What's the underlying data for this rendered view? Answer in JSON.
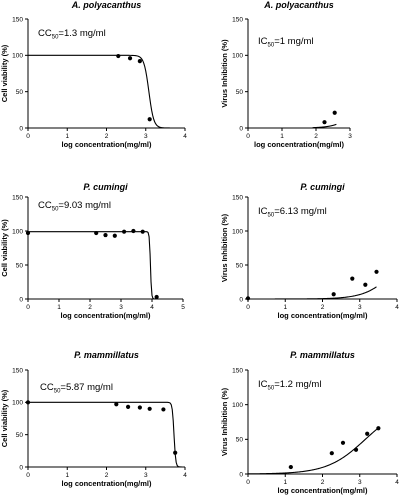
{
  "chart_data": [
    {
      "type": "scatter",
      "title": "A. polyacanthus",
      "annotation": {
        "prefix": "CC",
        "sub": "50",
        "text": "=1.3 mg/ml"
      },
      "xlabel": "log concentration(mg/ml)",
      "ylabel": "Cell viability (%)",
      "xlim": [
        0,
        4
      ],
      "ylim": [
        0,
        150
      ],
      "xticks": [
        0,
        1,
        2,
        3,
        4
      ],
      "yticks": [
        0,
        50,
        100,
        150
      ],
      "x": [
        2.3,
        2.6,
        2.85,
        3.1
      ],
      "y": [
        99,
        96,
        92,
        12
      ],
      "fit": {
        "model": "logistic-decrease",
        "top": 100,
        "ec50_log": 3.08,
        "hill": 7
      }
    },
    {
      "type": "scatter",
      "title": "A. polyacanthus",
      "annotation": {
        "prefix": "IC",
        "sub": "50",
        "text": "=1 mg/ml"
      },
      "xlabel": "log concentration(mg/ml)",
      "ylabel": "Virus Inhibition (%)",
      "xlim": [
        0,
        3
      ],
      "ylim": [
        0,
        150
      ],
      "xticks": [
        0,
        1,
        2,
        3
      ],
      "yticks": [
        0,
        50,
        100,
        150
      ],
      "x": [
        2.25,
        2.55
      ],
      "y": [
        8,
        21
      ],
      "fit": {
        "model": "logistic-increase",
        "top": 100,
        "ec50_log": 3.45,
        "hill": 1.5,
        "xstart": 1.9,
        "xend": 2.6
      }
    },
    {
      "type": "scatter",
      "title": "P. cumingi",
      "annotation": {
        "prefix": "CC",
        "sub": "50",
        "text": "=9.03 mg/ml"
      },
      "xlabel": "log concentration(mg/ml)",
      "ylabel": "Cell viability (%)",
      "xlim": [
        0,
        5
      ],
      "ylim": [
        0,
        150
      ],
      "xticks": [
        0,
        1,
        2,
        3,
        4,
        5
      ],
      "yticks": [
        0,
        50,
        100,
        150
      ],
      "x": [
        0,
        2.2,
        2.5,
        2.8,
        3.1,
        3.4,
        3.7,
        4.15
      ],
      "y": [
        97,
        97,
        94,
        93,
        99,
        100,
        99,
        3
      ],
      "fit": {
        "model": "logistic-decrease",
        "top": 99,
        "ec50_log": 3.95,
        "hill": 25
      }
    },
    {
      "type": "scatter",
      "title": "P. cumingi",
      "annotation": {
        "prefix": "IC",
        "sub": "50",
        "text": "=6.13 mg/ml"
      },
      "xlabel": "log concentration(mg/ml)",
      "ylabel": "Virus Inhibition (%)",
      "xlim": [
        0,
        4
      ],
      "ylim": [
        0,
        150
      ],
      "xticks": [
        0,
        1,
        2,
        3,
        4
      ],
      "yticks": [
        0,
        50,
        100,
        150
      ],
      "x": [
        0,
        2.3,
        2.8,
        3.15,
        3.45
      ],
      "y": [
        1,
        7,
        30,
        21,
        40
      ],
      "fit": {
        "model": "logistic-increase",
        "top": 100,
        "ec50_log": 4.05,
        "hill": 1.1,
        "xstart": 0,
        "xend": 3.45
      }
    },
    {
      "type": "scatter",
      "title": "P. mammillatus",
      "annotation": {
        "prefix": "CC",
        "sub": "50",
        "text": "=5.87 mg/ml"
      },
      "xlabel": "log concentration(mg/ml)",
      "ylabel": "Cell viability (%)",
      "xlim": [
        0,
        4
      ],
      "ylim": [
        0,
        150
      ],
      "xticks": [
        0,
        1,
        2,
        3,
        4
      ],
      "yticks": [
        0,
        50,
        100,
        150
      ],
      "x": [
        0,
        2.25,
        2.55,
        2.85,
        3.1,
        3.45,
        3.75
      ],
      "y": [
        100,
        97,
        93,
        92,
        90,
        89,
        22
      ],
      "fit": {
        "model": "logistic-decrease",
        "top": 100,
        "ec50_log": 3.72,
        "hill": 20
      }
    },
    {
      "type": "scatter",
      "title": "P. mammillatus",
      "annotation": {
        "prefix": "IC",
        "sub": "50",
        "text": "=1.2 mg/ml"
      },
      "xlabel": "log concentration(mg/ml)",
      "ylabel": "Virus Inhibition (%)",
      "xlim": [
        0,
        4
      ],
      "ylim": [
        0,
        150
      ],
      "xticks": [
        0,
        1,
        2,
        3,
        4
      ],
      "yticks": [
        0,
        50,
        100,
        150
      ],
      "x": [
        1.15,
        2.25,
        2.55,
        2.9,
        3.2,
        3.5
      ],
      "y": [
        10,
        30,
        45,
        35,
        58,
        66
      ],
      "fit": {
        "model": "logistic-increase",
        "top": 100,
        "ec50_log": 3.15,
        "hill": 0.85,
        "xstart": 0,
        "xend": 3.5
      }
    }
  ]
}
